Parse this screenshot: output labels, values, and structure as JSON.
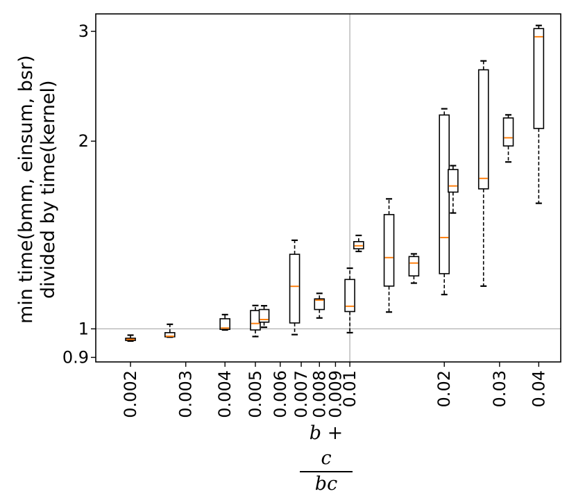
{
  "chart_data": {
    "type": "boxplot",
    "ylabel_lines": [
      "min time(bmm, einsum, bsr)",
      "divided by time(kernel)"
    ],
    "xlabel": {
      "numerator": "b + c",
      "denominator": "bc"
    },
    "x_scale": "log",
    "y_scale": "log",
    "xlim": [
      0.00155,
      0.047
    ],
    "ylim": [
      0.885,
      3.2
    ],
    "x_ticks": [
      {
        "value": 0.002,
        "label": "0.002"
      },
      {
        "value": 0.003,
        "label": "0.003"
      },
      {
        "value": 0.004,
        "label": "0.004"
      },
      {
        "value": 0.005,
        "label": "0.005"
      },
      {
        "value": 0.006,
        "label": "0.006"
      },
      {
        "value": 0.007,
        "label": "0.007"
      },
      {
        "value": 0.008,
        "label": "0.008"
      },
      {
        "value": 0.009,
        "label": "0.009"
      },
      {
        "value": 0.01,
        "label": "0.01"
      },
      {
        "value": 0.02,
        "label": "0.02"
      },
      {
        "value": 0.03,
        "label": "0.03"
      },
      {
        "value": 0.04,
        "label": "0.04"
      }
    ],
    "y_ticks": [
      {
        "value": 0.9,
        "label": "0.9"
      },
      {
        "value": 1,
        "label": "1"
      },
      {
        "value": 2,
        "label": "2"
      },
      {
        "value": 3,
        "label": "3"
      }
    ],
    "reference_lines": {
      "x": 0.01,
      "y": 1
    },
    "boxes": [
      {
        "x": 0.002,
        "whislo": 0.956,
        "q1": 0.958,
        "med": 0.962,
        "q3": 0.966,
        "whishi": 0.977
      },
      {
        "x": 0.00267,
        "whislo": 0.97,
        "q1": 0.971,
        "med": 0.973,
        "q3": 0.986,
        "whishi": 1.017
      },
      {
        "x": 0.004,
        "whislo": 0.996,
        "q1": 0.998,
        "med": 1.003,
        "q3": 1.038,
        "whishi": 1.054
      },
      {
        "x": 0.005,
        "whislo": 0.972,
        "q1": 0.996,
        "med": 1.02,
        "q3": 1.07,
        "whishi": 1.09
      },
      {
        "x": 0.00533,
        "whislo": 1.006,
        "q1": 1.025,
        "med": 1.035,
        "q3": 1.074,
        "whishi": 1.089
      },
      {
        "x": 0.00667,
        "whislo": 0.979,
        "q1": 1.022,
        "med": 1.17,
        "q3": 1.317,
        "whishi": 1.387
      },
      {
        "x": 0.008,
        "whislo": 1.041,
        "q1": 1.074,
        "med": 1.112,
        "q3": 1.117,
        "whishi": 1.14
      },
      {
        "x": 0.01,
        "whislo": 0.986,
        "q1": 1.066,
        "med": 1.087,
        "q3": 1.2,
        "whishi": 1.251
      },
      {
        "x": 0.01067,
        "whislo": 1.331,
        "q1": 1.344,
        "med": 1.359,
        "q3": 1.38,
        "whishi": 1.412
      },
      {
        "x": 0.01333,
        "whislo": 1.064,
        "q1": 1.171,
        "med": 1.301,
        "q3": 1.525,
        "whishi": 1.616
      },
      {
        "x": 0.016,
        "whislo": 1.184,
        "q1": 1.216,
        "med": 1.275,
        "q3": 1.306,
        "whishi": 1.319
      },
      {
        "x": 0.02,
        "whislo": 1.135,
        "q1": 1.226,
        "med": 1.401,
        "q3": 2.203,
        "whishi": 2.254
      },
      {
        "x": 0.02133,
        "whislo": 1.534,
        "q1": 1.657,
        "med": 1.695,
        "q3": 1.801,
        "whishi": 1.827
      },
      {
        "x": 0.02667,
        "whislo": 1.171,
        "q1": 1.677,
        "med": 1.743,
        "q3": 2.603,
        "whishi": 2.69
      },
      {
        "x": 0.032,
        "whislo": 1.852,
        "q1": 1.965,
        "med": 2.025,
        "q3": 2.179,
        "whishi": 2.204
      },
      {
        "x": 0.04,
        "whislo": 1.59,
        "q1": 2.096,
        "med": 2.941,
        "q3": 3.031,
        "whishi": 3.066
      }
    ],
    "colors": {
      "box": "#000000",
      "median": "#ff7f0e",
      "reference": "#b0b0b0"
    },
    "grid": false,
    "legend": "none"
  }
}
